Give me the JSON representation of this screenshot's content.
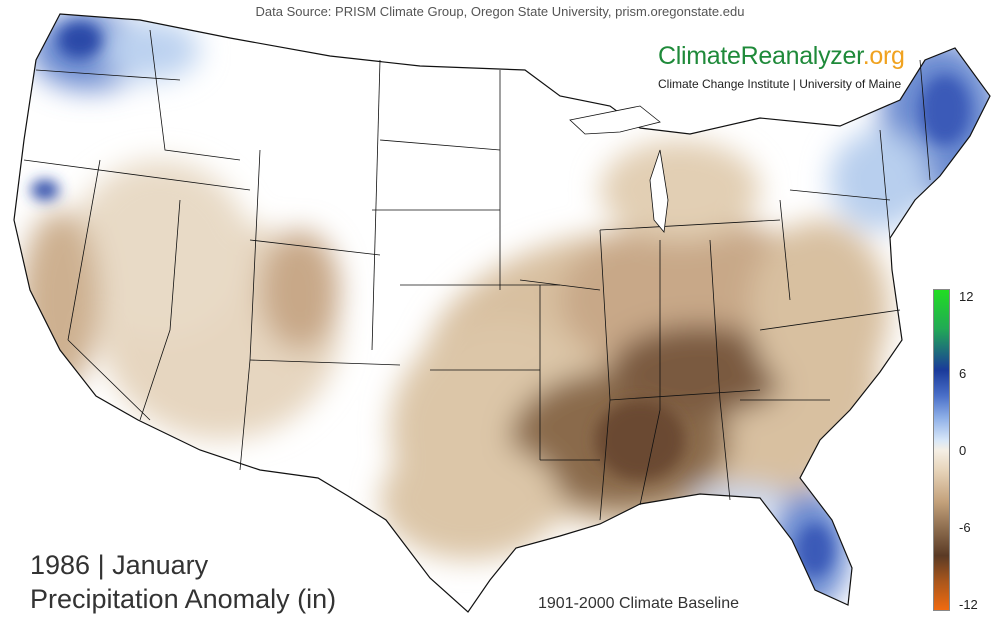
{
  "source_text": "Data Source: PRISM Climate Group, Oregon State University, prism.oregonstate.edu",
  "brand": {
    "name_main": "ClimateReanalyzer",
    "name_tld": ".org",
    "subtitle": "Climate Change Institute | University of Maine"
  },
  "title": {
    "line1": "1986 | January",
    "line2": "Precipitation Anomaly (in)"
  },
  "baseline": "1901-2000 Climate Baseline",
  "legend": {
    "ticks": [
      "12",
      "6",
      "0",
      "-6",
      "-12"
    ]
  },
  "colors": {
    "wet_extreme": "#22dd22",
    "wet": "#2a4aa8",
    "neutral": "#ffffff",
    "dry": "#7a5a3e",
    "dry_extreme": "#f06a10",
    "border": "#111111"
  }
}
